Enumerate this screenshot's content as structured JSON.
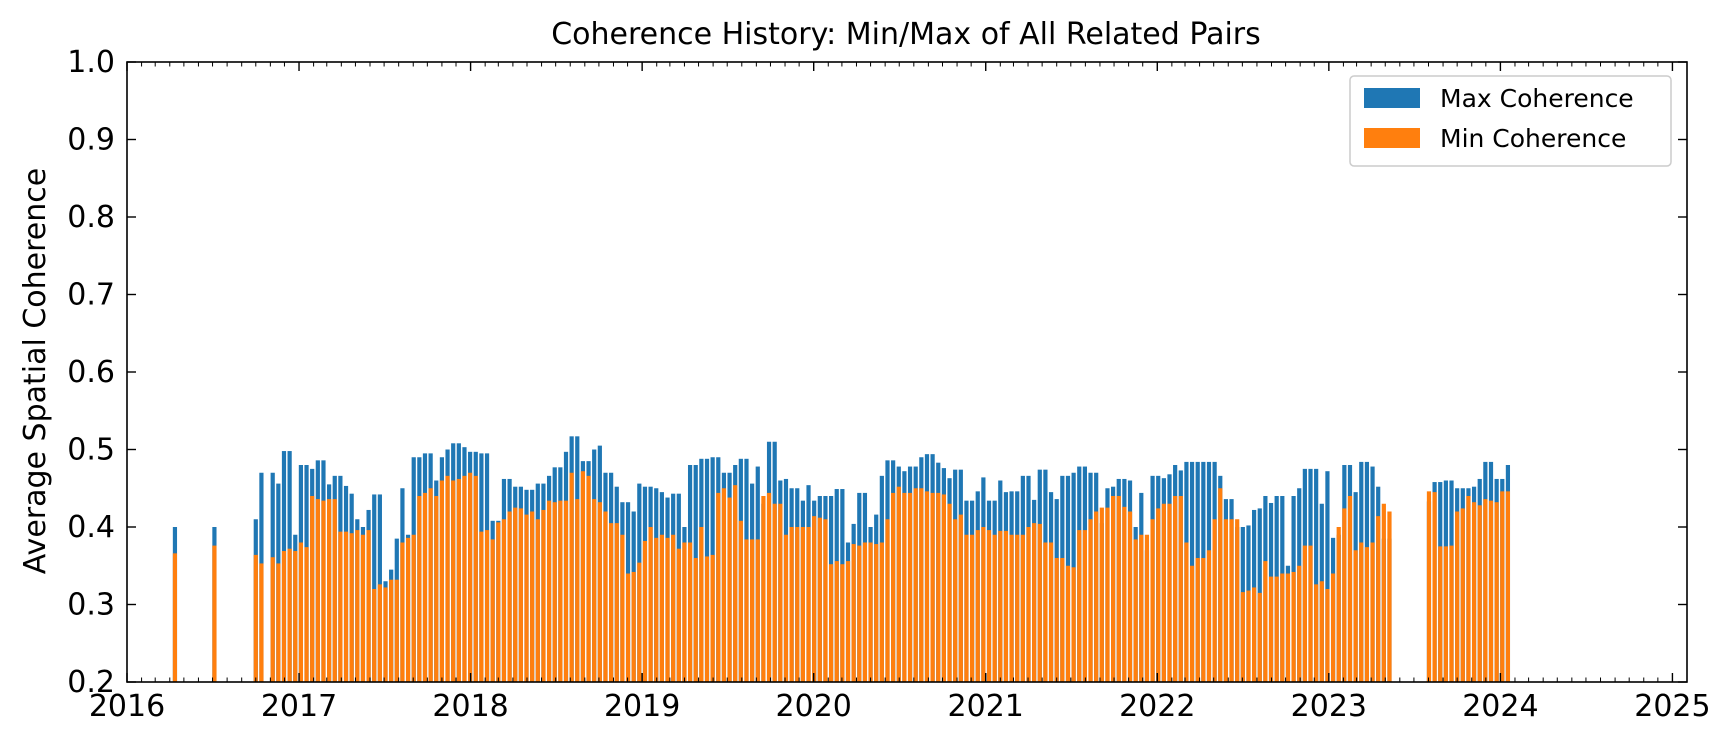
{
  "chart_data": {
    "type": "bar",
    "title": "Coherence History: Min/Max of All Related Pairs",
    "xlabel": "",
    "ylabel": "Average Spatial Coherence",
    "ylim": [
      0.2,
      1.0
    ],
    "xlim": [
      "2016-01-01",
      "2025-02-01"
    ],
    "yticks": [
      "0.2",
      "0.3",
      "0.4",
      "0.5",
      "0.6",
      "0.7",
      "0.8",
      "0.9",
      "1.0"
    ],
    "xticks": [
      "2016",
      "2017",
      "2018",
      "2019",
      "2020",
      "2021",
      "2022",
      "2023",
      "2024",
      "2025"
    ],
    "legend_position": "top-right",
    "grid": false,
    "colors": {
      "max": "#1f77b4",
      "min": "#ff7f0e"
    },
    "series": [
      {
        "name": "Max Coherence",
        "values": [
          0.4,
          0.4,
          0.41,
          0.47,
          0.47,
          0.456,
          0.498,
          0.498,
          0.39,
          0.48,
          0.48,
          0.475,
          0.486,
          0.486,
          0.455,
          0.466,
          0.466,
          0.453,
          0.443,
          0.41,
          0.4,
          0.422,
          0.442,
          0.442,
          0.33,
          0.345,
          0.385,
          0.45,
          0.39,
          0.49,
          0.49,
          0.495,
          0.495,
          0.46,
          0.49,
          0.5,
          0.508,
          0.508,
          0.503,
          0.497,
          0.497,
          0.495,
          0.495,
          0.408,
          0.408,
          0.462,
          0.462,
          0.452,
          0.452,
          0.448,
          0.448,
          0.456,
          0.456,
          0.466,
          0.477,
          0.477,
          0.497,
          0.517,
          0.517,
          0.485,
          0.485,
          0.5,
          0.505,
          0.47,
          0.47,
          0.452,
          0.432,
          0.432,
          0.42,
          0.456,
          0.452,
          0.452,
          0.45,
          0.445,
          0.438,
          0.443,
          0.443,
          0.4,
          0.48,
          0.48,
          0.488,
          0.488,
          0.49,
          0.49,
          0.47,
          0.47,
          0.48,
          0.488,
          0.488,
          0.456,
          0.478,
          0.43,
          0.51,
          0.51,
          0.46,
          0.462,
          0.45,
          0.45,
          0.434,
          0.454,
          0.434,
          0.44,
          0.44,
          0.44,
          0.449,
          0.449,
          0.38,
          0.404,
          0.444,
          0.444,
          0.4,
          0.416,
          0.466,
          0.486,
          0.486,
          0.478,
          0.472,
          0.478,
          0.478,
          0.49,
          0.494,
          0.494,
          0.483,
          0.476,
          0.463,
          0.474,
          0.474,
          0.434,
          0.434,
          0.446,
          0.464,
          0.434,
          0.434,
          0.46,
          0.445,
          0.446,
          0.446,
          0.466,
          0.466,
          0.435,
          0.474,
          0.474,
          0.445,
          0.436,
          0.466,
          0.466,
          0.47,
          0.478,
          0.478,
          0.47,
          0.47,
          0.405,
          0.45,
          0.452,
          0.462,
          0.462,
          0.46,
          0.4,
          0.444,
          0.37,
          0.466,
          0.466,
          0.463,
          0.468,
          0.48,
          0.473,
          0.484,
          0.484,
          0.484,
          0.484,
          0.484,
          0.484,
          0.466,
          0.436,
          0.436,
          0.4,
          0.4,
          0.402,
          0.422,
          0.424,
          0.44,
          0.431,
          0.44,
          0.44,
          0.35,
          0.44,
          0.45,
          0.475,
          0.475,
          0.475,
          0.43,
          0.472,
          0.386,
          0.39,
          0.48,
          0.48,
          0.445,
          0.484,
          0.484,
          0.478,
          0.452,
          0.385,
          0.385,
          0.433,
          0.458,
          0.458,
          0.46,
          0.46,
          0.45,
          0.45,
          0.45,
          0.452,
          0.462,
          0.484,
          0.484,
          0.462,
          0.462,
          0.48,
          0.48
        ]
      },
      {
        "name": "Min Coherence",
        "values": [
          0.366,
          0.376,
          0.364,
          0.353,
          0.361,
          0.353,
          0.369,
          0.372,
          0.369,
          0.38,
          0.374,
          0.44,
          0.436,
          0.434,
          0.436,
          0.436,
          0.394,
          0.394,
          0.392,
          0.396,
          0.39,
          0.396,
          0.32,
          0.326,
          0.322,
          0.332,
          0.332,
          0.38,
          0.386,
          0.39,
          0.44,
          0.444,
          0.45,
          0.44,
          0.46,
          0.466,
          0.46,
          0.462,
          0.466,
          0.47,
          0.466,
          0.394,
          0.396,
          0.384,
          0.406,
          0.41,
          0.42,
          0.425,
          0.424,
          0.416,
          0.42,
          0.41,
          0.422,
          0.434,
          0.432,
          0.434,
          0.434,
          0.47,
          0.436,
          0.472,
          0.466,
          0.436,
          0.432,
          0.42,
          0.405,
          0.405,
          0.39,
          0.34,
          0.342,
          0.354,
          0.382,
          0.4,
          0.386,
          0.39,
          0.386,
          0.39,
          0.372,
          0.38,
          0.38,
          0.36,
          0.4,
          0.362,
          0.364,
          0.444,
          0.45,
          0.438,
          0.454,
          0.408,
          0.384,
          0.384,
          0.384,
          0.44,
          0.444,
          0.43,
          0.43,
          0.39,
          0.4,
          0.4,
          0.4,
          0.4,
          0.414,
          0.412,
          0.41,
          0.352,
          0.356,
          0.352,
          0.356,
          0.378,
          0.376,
          0.38,
          0.38,
          0.378,
          0.38,
          0.41,
          0.444,
          0.452,
          0.444,
          0.444,
          0.45,
          0.45,
          0.446,
          0.444,
          0.444,
          0.442,
          0.43,
          0.41,
          0.416,
          0.39,
          0.39,
          0.396,
          0.4,
          0.396,
          0.39,
          0.395,
          0.395,
          0.39,
          0.39,
          0.39,
          0.4,
          0.405,
          0.404,
          0.38,
          0.38,
          0.36,
          0.36,
          0.35,
          0.348,
          0.396,
          0.396,
          0.41,
          0.42,
          0.425,
          0.425,
          0.44,
          0.44,
          0.426,
          0.42,
          0.384,
          0.39,
          0.39,
          0.41,
          0.424,
          0.43,
          0.43,
          0.44,
          0.44,
          0.38,
          0.35,
          0.36,
          0.36,
          0.37,
          0.41,
          0.45,
          0.41,
          0.41,
          0.41,
          0.316,
          0.318,
          0.322,
          0.315,
          0.356,
          0.336,
          0.336,
          0.34,
          0.34,
          0.342,
          0.35,
          0.376,
          0.376,
          0.326,
          0.33,
          0.32,
          0.34,
          0.4,
          0.424,
          0.44,
          0.37,
          0.38,
          0.374,
          0.38,
          0.414,
          0.43,
          0.42,
          0.446,
          0.445,
          0.375,
          0.375,
          0.376,
          0.42,
          0.424,
          0.44,
          0.432,
          0.428,
          0.436,
          0.434,
          0.432,
          0.446,
          0.446
        ]
      }
    ]
  }
}
